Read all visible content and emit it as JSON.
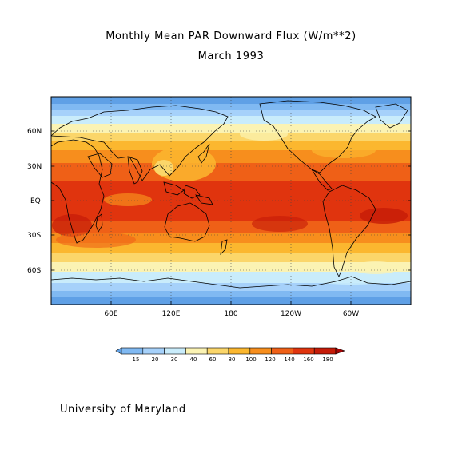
{
  "title": "Monthly Mean PAR Downward Flux (W/m**2)",
  "subtitle": "March 1993",
  "credit": "University of Maryland",
  "map": {
    "projection": "cylindrical equidistant",
    "lon_range": [
      0,
      360
    ],
    "lat_range": [
      -90,
      90
    ],
    "lat_labels": [
      "60N",
      "30N",
      "EQ",
      "30S",
      "60S"
    ],
    "lon_labels": [
      "60E",
      "120E",
      "180",
      "120W",
      "60W"
    ],
    "grid": "dotted",
    "field": "Photosynthetically active radiation, downward flux at surface"
  },
  "colorbar": {
    "levels": [
      "15",
      "20",
      "30",
      "40",
      "60",
      "80",
      "100",
      "120",
      "140",
      "160",
      "180"
    ],
    "colors": [
      "#5fa0e6",
      "#80b9f2",
      "#a6d1fa",
      "#c9ecfb",
      "#fbf3b3",
      "#fbd66a",
      "#fbb72f",
      "#f78e1d",
      "#ef6017",
      "#e0340e",
      "#c51b08",
      "#a80505"
    ]
  }
}
